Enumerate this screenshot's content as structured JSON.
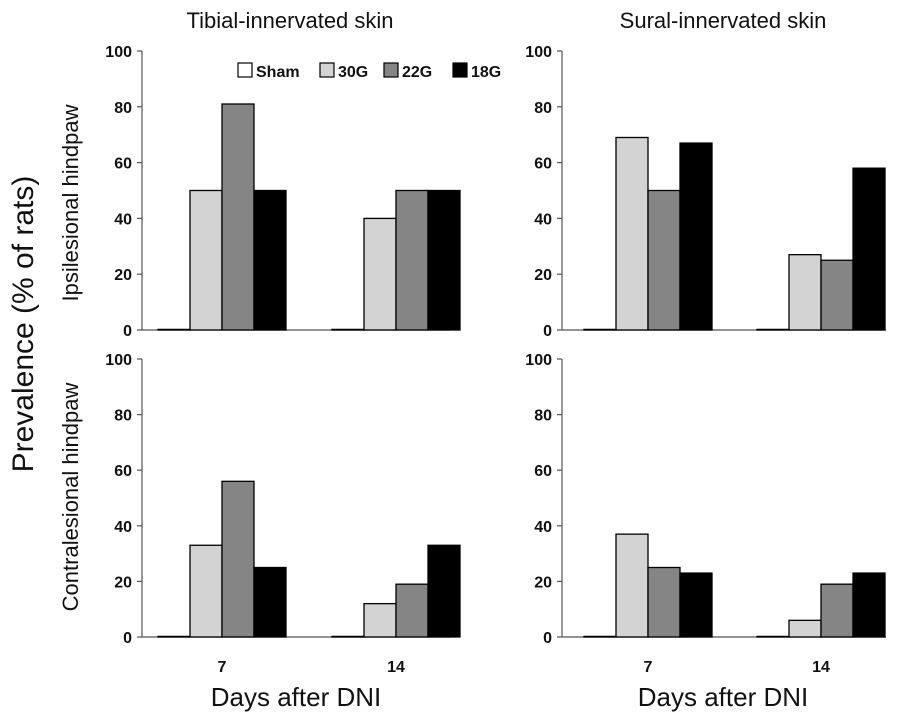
{
  "chart_data": {
    "type": "bar",
    "ylabel": "Prevalence (% of rats)",
    "legend": {
      "placement": "top",
      "entries": [
        "Sham",
        "30G",
        "22G",
        "18G"
      ]
    },
    "series_colors": {
      "Sham": "#ffffff",
      "30G": "#d3d3d3",
      "22G": "#858585",
      "18G": "#000000"
    },
    "ylim": [
      0,
      100
    ],
    "yticks": [
      "0",
      "20",
      "40",
      "60",
      "80",
      "100"
    ],
    "columns": [
      "Tibial-innervated skin",
      "Sural-innervated skin"
    ],
    "rows": [
      "Ipsilesional hindpaw",
      "Contralesional hindpaw"
    ],
    "xlabel": "Days after DNI",
    "categories": [
      "7",
      "14"
    ],
    "panels": [
      {
        "column": "Tibial-innervated skin",
        "row": "Ipsilesional hindpaw",
        "series": [
          {
            "name": "Sham",
            "values": [
              0,
              0
            ]
          },
          {
            "name": "30G",
            "values": [
              50,
              40
            ]
          },
          {
            "name": "22G",
            "values": [
              81,
              50
            ]
          },
          {
            "name": "18G",
            "values": [
              50,
              50
            ]
          }
        ]
      },
      {
        "column": "Sural-innervated skin",
        "row": "Ipsilesional hindpaw",
        "series": [
          {
            "name": "Sham",
            "values": [
              0,
              0
            ]
          },
          {
            "name": "30G",
            "values": [
              69,
              27
            ]
          },
          {
            "name": "22G",
            "values": [
              50,
              25
            ]
          },
          {
            "name": "18G",
            "values": [
              67,
              58
            ]
          }
        ]
      },
      {
        "column": "Tibial-innervated skin",
        "row": "Contralesional hindpaw",
        "series": [
          {
            "name": "Sham",
            "values": [
              0,
              0
            ]
          },
          {
            "name": "30G",
            "values": [
              33,
              12
            ]
          },
          {
            "name": "22G",
            "values": [
              56,
              19
            ]
          },
          {
            "name": "18G",
            "values": [
              25,
              33
            ]
          }
        ]
      },
      {
        "column": "Sural-innervated skin",
        "row": "Contralesional hindpaw",
        "series": [
          {
            "name": "Sham",
            "values": [
              0,
              0
            ]
          },
          {
            "name": "30G",
            "values": [
              37,
              6
            ]
          },
          {
            "name": "22G",
            "values": [
              25,
              19
            ]
          },
          {
            "name": "18G",
            "values": [
              23,
              23
            ]
          }
        ]
      }
    ]
  }
}
